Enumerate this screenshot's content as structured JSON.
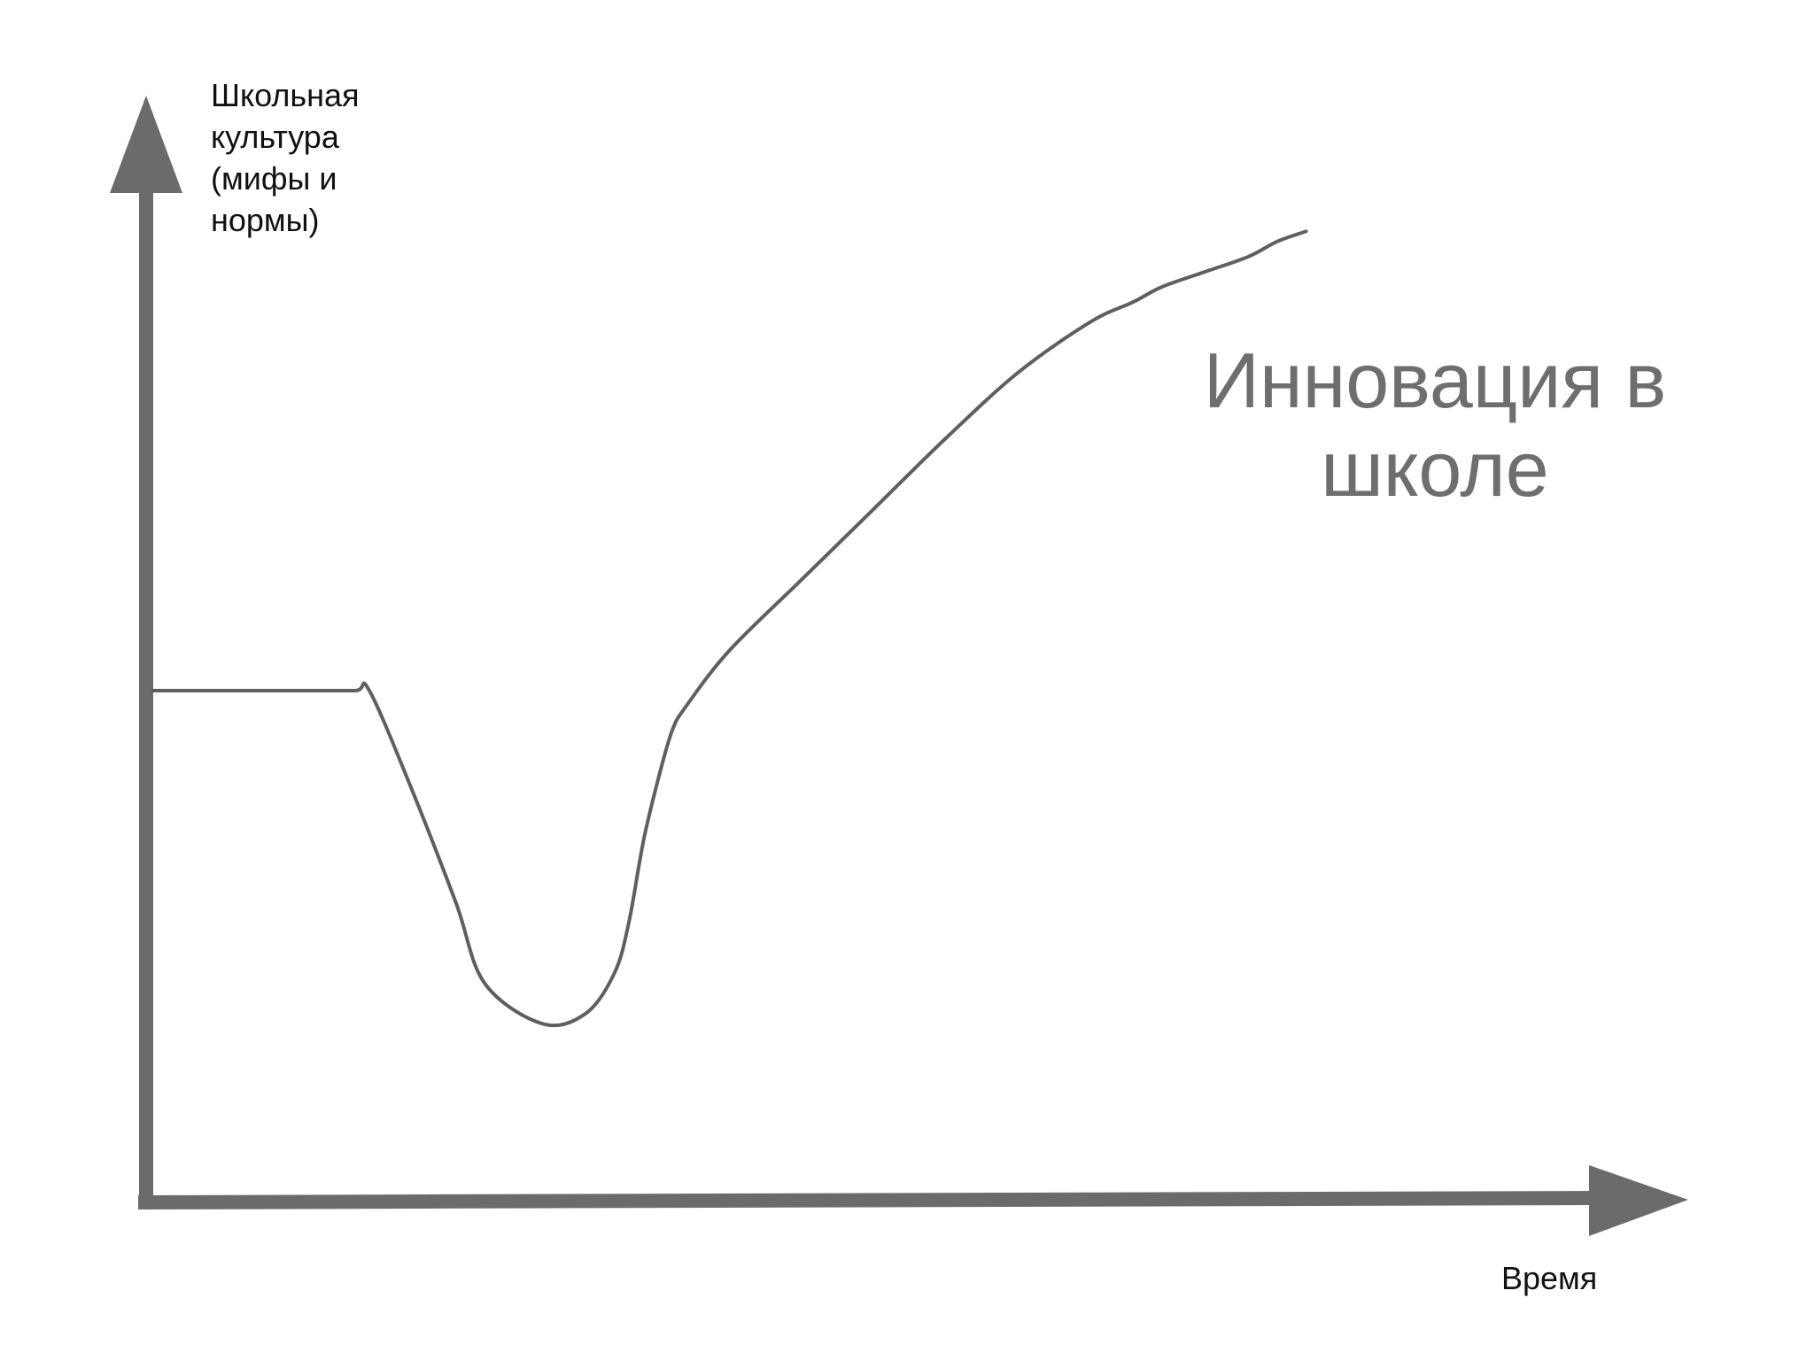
{
  "chart_data": {
    "type": "line",
    "title_lines": [
      "Инновация в",
      "школе"
    ],
    "ylabel_lines": [
      "Школьная",
      "культура",
      "(мифы и",
      "нормы)"
    ],
    "xlabel": "Время",
    "grid": false,
    "legend": "none",
    "xlim": [
      0,
      100
    ],
    "ylim": [
      0,
      100
    ],
    "series": [
      {
        "x": [
          0,
          10,
          14,
          15,
          18,
          21,
          23,
          27,
          30,
          32,
          33,
          34,
          35,
          36,
          37,
          40,
          45,
          50,
          55,
          60,
          65,
          68,
          70,
          73,
          76,
          78,
          80
        ],
        "y": [
          50,
          50,
          50,
          50,
          40,
          29,
          21,
          17,
          18,
          22,
          27,
          35,
          41,
          46,
          48.5,
          54,
          61,
          68,
          75,
          81.5,
          86.5,
          88.5,
          90,
          91.5,
          93,
          94.5,
          95.5
        ]
      }
    ],
    "colors": {
      "axis": "#6b6b6b",
      "line": "#5f5f5f"
    }
  }
}
